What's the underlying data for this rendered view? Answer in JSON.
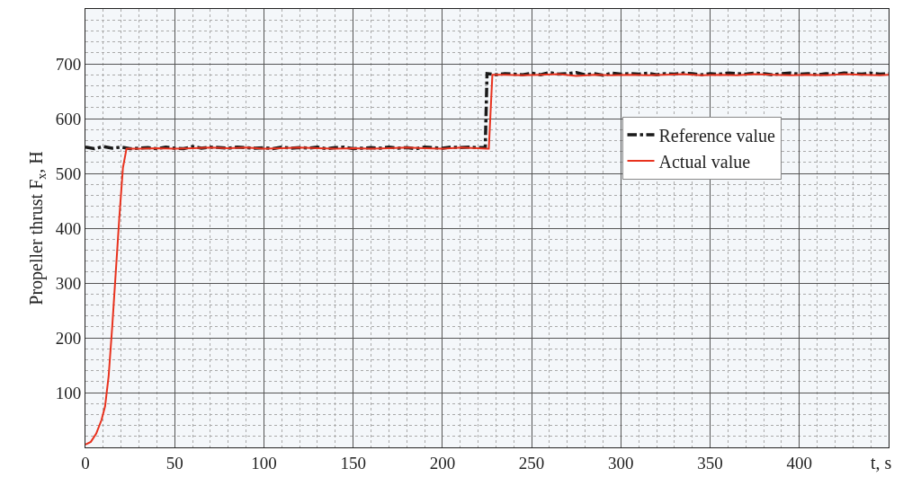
{
  "chart_data": {
    "type": "line",
    "xlabel": "t, s",
    "ylabel": "Propeller thrust F$_{x}$, H",
    "xlim": [
      0,
      450
    ],
    "xticks": [
      0,
      50,
      100,
      150,
      200,
      250,
      300,
      350,
      400
    ],
    "ylim": [
      0,
      800
    ],
    "yticks": [
      100,
      200,
      300,
      400,
      500,
      600,
      700
    ],
    "grid": true,
    "legend": "top right",
    "series": [
      {
        "name": "Reference value",
        "color": "#1a1a1a",
        "line_style": "dashdot",
        "x": [
          0,
          5,
          10,
          15,
          20,
          25,
          30,
          35,
          40,
          45,
          50,
          55,
          60,
          65,
          70,
          75,
          80,
          85,
          90,
          95,
          100,
          105,
          110,
          115,
          120,
          125,
          130,
          135,
          140,
          145,
          150,
          155,
          160,
          165,
          170,
          175,
          180,
          185,
          190,
          195,
          200,
          205,
          210,
          215,
          220,
          224,
          225,
          230,
          235,
          240,
          245,
          250,
          255,
          260,
          265,
          270,
          275,
          280,
          285,
          290,
          295,
          300,
          305,
          310,
          315,
          320,
          325,
          330,
          335,
          340,
          345,
          350,
          355,
          360,
          365,
          370,
          375,
          380,
          385,
          390,
          395,
          400,
          405,
          410,
          415,
          420,
          425,
          430,
          435,
          440,
          445,
          450
        ],
        "values": [
          548,
          545,
          549,
          546,
          548,
          545,
          546,
          547,
          545,
          548,
          546,
          545,
          549,
          546,
          548,
          547,
          546,
          548,
          547,
          546,
          547,
          545,
          548,
          546,
          547,
          546,
          548,
          545,
          547,
          548,
          545,
          546,
          547,
          546,
          548,
          546,
          547,
          545,
          548,
          547,
          546,
          548,
          547,
          548,
          547,
          547,
          682,
          680,
          682,
          681,
          680,
          683,
          680,
          684,
          681,
          682,
          684,
          680,
          682,
          679,
          683,
          681,
          682,
          681,
          683,
          680,
          682,
          681,
          683,
          682,
          680,
          682,
          681,
          683,
          682,
          681,
          683,
          682,
          680,
          682,
          683,
          681,
          682,
          680,
          682,
          681,
          683,
          682,
          681,
          683,
          681,
          682
        ]
      },
      {
        "name": "Actual value",
        "color": "#e8321e",
        "line_style": "solid",
        "x": [
          0,
          3,
          6,
          9,
          11,
          13,
          15,
          17,
          19,
          21,
          23,
          30,
          40,
          50,
          60,
          70,
          80,
          90,
          100,
          110,
          120,
          130,
          140,
          150,
          160,
          170,
          180,
          190,
          200,
          210,
          220,
          225,
          226,
          228,
          235,
          245,
          255,
          265,
          275,
          285,
          295,
          305,
          315,
          325,
          335,
          345,
          355,
          365,
          375,
          385,
          395,
          405,
          415,
          425,
          435,
          445,
          450
        ],
        "values": [
          5,
          10,
          25,
          50,
          75,
          130,
          220,
          320,
          420,
          510,
          545,
          545,
          546,
          545,
          546,
          547,
          546,
          547,
          545,
          546,
          547,
          546,
          545,
          546,
          545,
          546,
          547,
          546,
          545,
          547,
          546,
          545,
          545,
          680,
          680,
          679,
          680,
          681,
          678,
          680,
          679,
          680,
          679,
          680,
          681,
          679,
          680,
          679,
          681,
          680,
          679,
          680,
          679,
          681,
          680,
          679,
          680
        ]
      }
    ]
  }
}
